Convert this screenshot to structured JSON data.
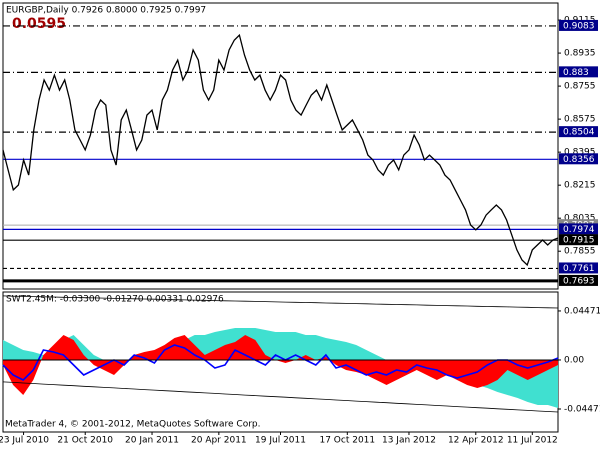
{
  "header": {
    "info": "EURGBP,Daily  0.7926 0.8000 0.7925 0.7997",
    "value": "0.0595"
  },
  "footer": "MetaTrader 4, © 2001-2012, MetaQuotes Software Corp.",
  "chart_data": [
    {
      "type": "line",
      "color": "#000000",
      "categories": [
        null,
        null,
        null,
        null,
        "23 Jul 2010",
        null,
        null,
        null,
        null,
        null,
        null,
        null,
        null,
        null,
        null,
        null,
        "21 Oct 2010",
        null,
        null,
        null,
        null,
        null,
        null,
        null,
        null,
        null,
        null,
        null,
        null,
        "20 Jan 2011",
        null,
        null,
        null,
        null,
        null,
        null,
        null,
        null,
        null,
        null,
        null,
        null,
        "20 Apr 2011",
        null,
        null,
        null,
        null,
        null,
        null,
        null,
        null,
        null,
        null,
        null,
        "19 Jul 2011",
        null,
        null,
        null,
        null,
        null,
        null,
        null,
        null,
        null,
        null,
        null,
        null,
        "17 Oct 2011",
        null,
        null,
        null,
        null,
        null,
        null,
        null,
        null,
        null,
        null,
        null,
        "13 Jan 2012",
        null,
        null,
        null,
        null,
        null,
        null,
        null,
        null,
        null,
        null,
        null,
        null,
        "12 Apr 2012",
        null,
        null,
        null,
        null,
        null,
        null,
        null,
        null,
        null,
        null,
        "11 Jul 2012",
        null,
        null,
        null,
        null,
        null
      ],
      "values": [
        0.8407,
        0.8298,
        0.8189,
        0.8216,
        0.8352,
        0.827,
        0.8516,
        0.8679,
        0.8788,
        0.8733,
        0.8815,
        0.8733,
        0.8788,
        0.8679,
        0.8516,
        0.8461,
        0.8407,
        0.8488,
        0.8624,
        0.8679,
        0.8652,
        0.8407,
        0.8325,
        0.857,
        0.8624,
        0.8516,
        0.8407,
        0.8461,
        0.8597,
        0.8624,
        0.8516,
        0.8679,
        0.8733,
        0.8842,
        0.8897,
        0.8788,
        0.8842,
        0.8952,
        0.8897,
        0.8733,
        0.8679,
        0.8733,
        0.8897,
        0.8842,
        0.8952,
        0.9006,
        0.9033,
        0.8924,
        0.8842,
        0.8788,
        0.8815,
        0.8733,
        0.8679,
        0.8733,
        0.8815,
        0.8788,
        0.8679,
        0.8624,
        0.8597,
        0.8652,
        0.8706,
        0.8733,
        0.8679,
        0.8761,
        0.8679,
        0.8597,
        0.8516,
        0.8543,
        0.857,
        0.8516,
        0.8461,
        0.8379,
        0.8352,
        0.8298,
        0.827,
        0.8325,
        0.8352,
        0.8298,
        0.8379,
        0.8407,
        0.8488,
        0.8434,
        0.8352,
        0.8379,
        0.8352,
        0.8325,
        0.827,
        0.8243,
        0.8189,
        0.8134,
        0.808,
        0.7998,
        0.7971,
        0.7998,
        0.8052,
        0.808,
        0.8107,
        0.808,
        0.8025,
        0.7943,
        0.7862,
        0.7807,
        0.778,
        0.7862,
        0.7889,
        0.7916,
        0.7889,
        0.7916,
        0.7927
      ],
      "ylim": [
        0.7649,
        0.9208
      ],
      "yticks": [
        0.9115,
        0.8935,
        0.8755,
        0.8575,
        0.8395,
        0.8215,
        0.8035,
        0.7855
      ],
      "current_price": 0.7997,
      "levels": [
        {
          "value": 0.9083,
          "color": "#000000",
          "dash": "dashdot",
          "label_bg": "#00008b"
        },
        {
          "value": 0.883,
          "color": "#000000",
          "dash": "dashdot",
          "label_bg": "#00008b"
        },
        {
          "value": 0.8504,
          "color": "#000000",
          "dash": "dashdot",
          "label_bg": "#00008b"
        },
        {
          "value": 0.8356,
          "color": "#0000cc",
          "dash": "solid",
          "label_bg": "#00008b"
        },
        {
          "value": 0.7974,
          "color": "#0000cc",
          "dash": "solid",
          "label_bg": "#00008b"
        },
        {
          "value": 0.7915,
          "color": "#000000",
          "dash": "solid",
          "label_bg": "#000000"
        },
        {
          "value": 0.7761,
          "color": "#000000",
          "dash": "dash",
          "label_bg": "#00008b"
        },
        {
          "value": 0.7693,
          "color": "#000000",
          "dash": "thick",
          "label_bg": "#000000"
        }
      ]
    },
    {
      "type": "oscillator",
      "title": "SWT2.45M: -0.03300 -0.01270 0.00331 0.02976",
      "ylim": [
        -0.0657,
        0.062
      ],
      "yticks": [
        0.04471,
        {
          "value": 0,
          "label": "0.00"
        },
        -0.04471
      ],
      "series": [
        {
          "color": "#40e0d0",
          "style": "area",
          "values": [
            0.01824,
            0.01368,
            0.00912,
            0.0073,
            0.00456,
            0.00912,
            0.01824,
            0.0228,
            0.01368,
            0.00456,
            0,
            -0.00274,
            -0.00182,
            0,
            0.00274,
            0.00456,
            0.00912,
            0.01368,
            0.01824,
            0.0228,
            0.0228,
            0.02554,
            0.02736,
            0.02918,
            0.02918,
            0.02918,
            0.02736,
            0.02554,
            0.02554,
            0.02554,
            0.0228,
            0.0228,
            0.02006,
            0.01824,
            0.01642,
            0.01368,
            0.00912,
            0.00456,
            0,
            -0.00274,
            -0.00456,
            -0.0073,
            -0.00912,
            -0.01094,
            -0.01368,
            -0.01642,
            -0.02006,
            -0.0228,
            -0.02554,
            -0.02918,
            -0.03192,
            -0.03466,
            -0.0383,
            -0.04104,
            -0.04104,
            -0.04378
          ]
        },
        {
          "color": "#ff0000",
          "style": "area",
          "values": [
            -0.00456,
            -0.0228,
            -0.03192,
            -0.01824,
            0.00456,
            0.01368,
            0.0228,
            0.01824,
            0.00456,
            -0.00456,
            -0.00912,
            -0.01368,
            -0.00456,
            0.00456,
            0.0073,
            0.00912,
            0.01368,
            0.02006,
            0.0228,
            0.01368,
            0.00456,
            0.00912,
            0.01368,
            0.01642,
            0.0228,
            0.01824,
            0.00456,
            0,
            -0.00274,
            0,
            0.00456,
            0,
            0.00274,
            -0.00456,
            -0.00912,
            -0.01094,
            -0.01368,
            -0.01824,
            -0.0228,
            -0.01824,
            -0.01368,
            -0.00912,
            -0.01368,
            -0.01824,
            -0.01368,
            -0.01824,
            -0.0228,
            -0.02554,
            -0.0228,
            -0.01824,
            -0.00912,
            -0.01368,
            -0.01824,
            -0.01368,
            -0.00912,
            -0.00456
          ]
        },
        {
          "color": "#0000ff",
          "style": "line",
          "values": [
            -0.00456,
            -0.01368,
            -0.01824,
            -0.00912,
            0.00912,
            0.0073,
            0.00456,
            -0.00456,
            -0.01368,
            -0.00912,
            -0.00456,
            0,
            -0.00456,
            0.00456,
            0.00182,
            -0.00274,
            0.00912,
            0.01368,
            0.01094,
            0.00456,
            0,
            -0.0073,
            -0.00456,
            0.00912,
            0.00456,
            0,
            -0.00456,
            0.00456,
            0,
            0.00456,
            0,
            -0.00456,
            0.00456,
            -0.0073,
            -0.00456,
            -0.00912,
            -0.01368,
            -0.01094,
            -0.01368,
            -0.00912,
            -0.01094,
            -0.00456,
            -0.0073,
            -0.00912,
            -0.01368,
            -0.01642,
            -0.01368,
            -0.01094,
            -0.00456,
            0,
            0,
            -0.00456,
            -0.0073,
            -0.00456,
            -0.00182,
            0.00182
          ]
        },
        {
          "color": "#000000",
          "style": "thin",
          "values": [
            0.0584,
            0.0582,
            0.058,
            0.0578,
            0.0576,
            0.0574,
            0.0572,
            0.057,
            0.0568,
            0.0566,
            0.0564,
            0.0562,
            0.056,
            0.0558,
            0.0556,
            0.0554,
            0.0552,
            0.055,
            0.0548,
            0.0546,
            0.0544,
            0.0542,
            0.054,
            0.0538,
            0.0536,
            0.0534,
            0.0532,
            0.053,
            0.0528,
            0.0526,
            0.0524,
            0.0522,
            0.052,
            0.0518,
            0.0516,
            0.0514,
            0.0512,
            0.051,
            0.0508,
            0.0506,
            0.0504,
            0.0502,
            0.05,
            0.0498,
            0.0496,
            0.0494,
            0.0492,
            0.049,
            0.0488,
            0.0486,
            0.0484,
            0.0482,
            0.048,
            0.0478,
            0.0476,
            0.0474
          ]
        },
        {
          "color": "#000000",
          "style": "thin",
          "values": [
            -0.02,
            -0.0205,
            -0.021,
            -0.0215,
            -0.022,
            -0.0225,
            -0.023,
            -0.0235,
            -0.024,
            -0.0245,
            -0.025,
            -0.0255,
            -0.026,
            -0.0265,
            -0.027,
            -0.0275,
            -0.028,
            -0.0285,
            -0.029,
            -0.0295,
            -0.03,
            -0.0305,
            -0.031,
            -0.0315,
            -0.032,
            -0.0325,
            -0.033,
            -0.0335,
            -0.034,
            -0.0345,
            -0.035,
            -0.0355,
            -0.036,
            -0.0365,
            -0.037,
            -0.0375,
            -0.038,
            -0.0385,
            -0.039,
            -0.0395,
            -0.04,
            -0.0405,
            -0.041,
            -0.0415,
            -0.042,
            -0.0425,
            -0.043,
            -0.0435,
            -0.044,
            -0.0445,
            -0.045,
            -0.0455,
            -0.046,
            -0.0465,
            -0.047,
            -0.0475
          ]
        }
      ]
    }
  ]
}
